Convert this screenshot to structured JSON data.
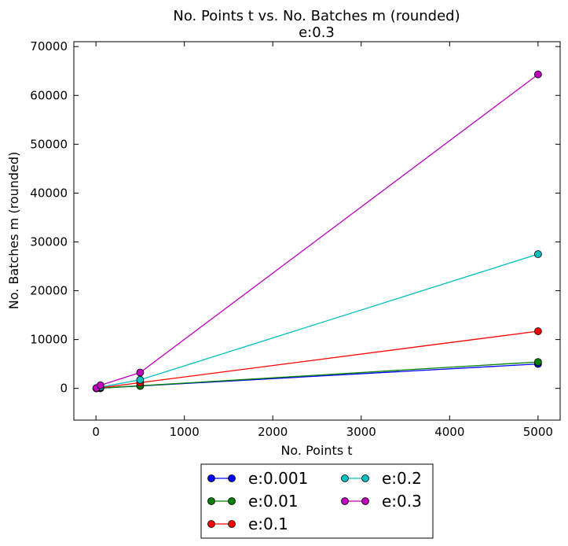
{
  "chart_data": {
    "type": "line",
    "title": "No. Points t vs. No. Batches m (rounded)",
    "subtitle": "e:0.3",
    "xlabel": "No. Points t",
    "ylabel": "No. Batches m (rounded)",
    "xlim": [
      -250,
      5250
    ],
    "ylim": [
      -6500,
      71000
    ],
    "xticks": [
      0,
      1000,
      2000,
      3000,
      4000,
      5000
    ],
    "yticks": [
      0,
      10000,
      20000,
      30000,
      40000,
      50000,
      60000,
      70000
    ],
    "grid": false,
    "legend": {
      "placement": "below",
      "columns": 2
    },
    "x": [
      5,
      50,
      500,
      5000
    ],
    "series": [
      {
        "name": "e:0.001",
        "color": "#0000ff",
        "values": [
          5,
          50,
          500,
          5000
        ]
      },
      {
        "name": "e:0.01",
        "color": "#008000",
        "values": [
          5,
          50,
          540,
          5400
        ]
      },
      {
        "name": "e:0.1",
        "color": "#ff0000",
        "values": [
          12,
          120,
          1170,
          11700
        ]
      },
      {
        "name": "e:0.2",
        "color": "#00bfbf",
        "values": [
          28,
          275,
          1750,
          27500
        ]
      },
      {
        "name": "e:0.3",
        "color": "#bf00bf",
        "values": [
          64,
          640,
          3250,
          64300
        ]
      }
    ]
  }
}
